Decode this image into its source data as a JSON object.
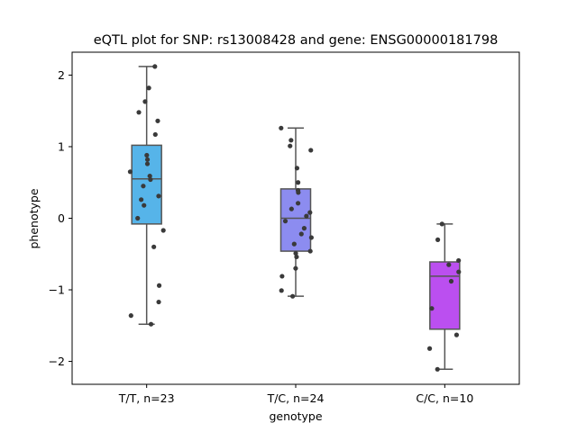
{
  "chart_data": {
    "type": "box",
    "title": "eQTL plot for SNP: rs13008428 and gene: ENSG00000181798",
    "xlabel": "genotype",
    "ylabel": "phenotype",
    "ylim": [
      -2.32,
      2.32
    ],
    "yticks": [
      -2,
      -1,
      0,
      1,
      2
    ],
    "ytick_labels": [
      "−2",
      "−1",
      "0",
      "1",
      "2"
    ],
    "categories": [
      "T/T, n=23",
      "T/C, n=24",
      "C/C, n=10"
    ],
    "colors": [
      "#56b4e9",
      "#8c8cf0",
      "#bb4ff0"
    ],
    "boxes": [
      {
        "whislo": -1.48,
        "q1": -0.08,
        "med": 0.55,
        "q3": 1.02,
        "whishi": 2.12
      },
      {
        "whislo": -1.09,
        "q1": -0.46,
        "med": 0.0,
        "q3": 0.41,
        "whishi": 1.26
      },
      {
        "whislo": -2.11,
        "q1": -1.55,
        "med": -0.81,
        "q3": -0.61,
        "whishi": -0.08
      }
    ],
    "points": [
      [
        2.12,
        1.82,
        1.63,
        1.48,
        1.36,
        1.17,
        0.88,
        0.82,
        0.76,
        0.65,
        0.59,
        0.54,
        0.45,
        0.31,
        0.26,
        0.18,
        0.0,
        -0.17,
        -0.4,
        -0.94,
        -1.17,
        -1.36,
        -1.48
      ],
      [
        1.26,
        1.09,
        1.01,
        0.95,
        0.7,
        0.5,
        0.39,
        0.36,
        0.21,
        0.13,
        0.08,
        0.03,
        -0.04,
        -0.14,
        -0.22,
        -0.27,
        -0.36,
        -0.46,
        -0.49,
        -0.54,
        -0.7,
        -0.81,
        -1.01,
        -1.09
      ],
      [
        -0.08,
        -0.3,
        -0.59,
        -0.65,
        -0.75,
        -0.88,
        -1.26,
        -1.63,
        -1.82,
        -2.11
      ]
    ]
  }
}
